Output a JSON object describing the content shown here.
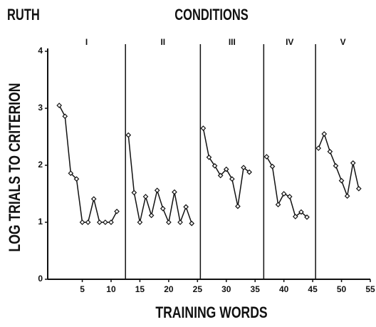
{
  "chart_data": {
    "type": "line",
    "title": "RUTH",
    "subtitle": "CONDITIONS",
    "conditions": [
      "I",
      "II",
      "III",
      "IV",
      "V"
    ],
    "phase_lines": [
      12.5,
      25.5,
      36.5,
      45.5
    ],
    "xlabel": "TRAINING WORDS",
    "ylabel": "LOG TRIALS TO CRITERION",
    "xlim": [
      -1,
      55
    ],
    "xticks": [
      5,
      10,
      15,
      20,
      25,
      30,
      35,
      40,
      45,
      50,
      55
    ],
    "ylim": [
      0,
      4
    ],
    "yticks": [
      0,
      1,
      2,
      3,
      4
    ],
    "color": "#111111",
    "series": [
      {
        "x": [
          1,
          2,
          3,
          4,
          5,
          6,
          7,
          8,
          9,
          10,
          11
        ],
        "values": [
          3.05,
          2.86,
          1.86,
          1.76,
          1.0,
          1.0,
          1.41,
          1.0,
          1.0,
          1.0,
          1.19
        ]
      },
      {
        "x": [
          13,
          14,
          15,
          16,
          17,
          18,
          19,
          20,
          21,
          22,
          23,
          24
        ],
        "values": [
          2.53,
          1.52,
          1.0,
          1.45,
          1.12,
          1.56,
          1.24,
          1.0,
          1.53,
          1.0,
          1.27,
          0.98
        ]
      },
      {
        "x": [
          26,
          27,
          28,
          29,
          30,
          31,
          32,
          33,
          34
        ],
        "values": [
          2.65,
          2.14,
          1.99,
          1.82,
          1.93,
          1.76,
          1.28,
          1.96,
          1.88
        ]
      },
      {
        "x": [
          37,
          38,
          39,
          40,
          41,
          42,
          43,
          44
        ],
        "values": [
          2.15,
          1.98,
          1.31,
          1.5,
          1.45,
          1.1,
          1.18,
          1.09
        ]
      },
      {
        "x": [
          46,
          47,
          48,
          49,
          50,
          51,
          52,
          53
        ],
        "values": [
          2.3,
          2.55,
          2.24,
          1.99,
          1.73,
          1.46,
          2.04,
          1.59
        ]
      }
    ]
  }
}
